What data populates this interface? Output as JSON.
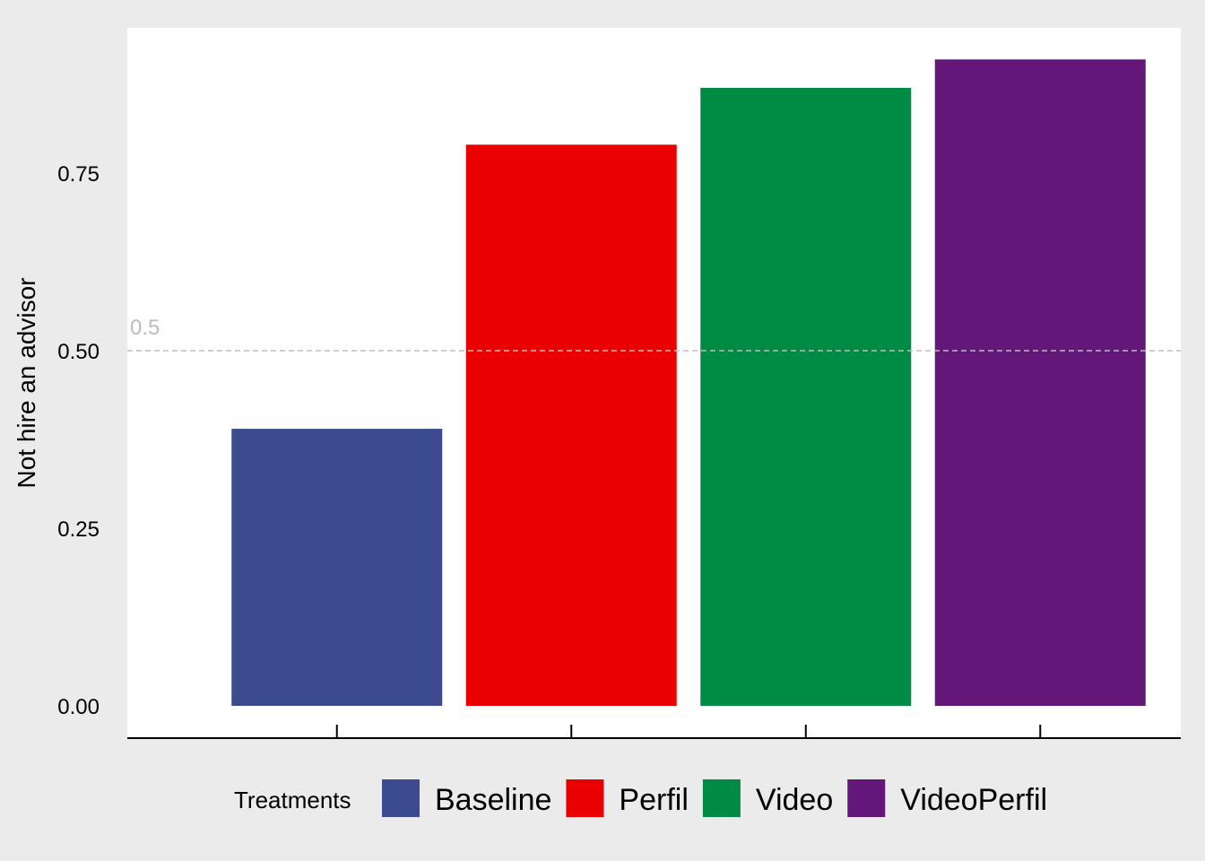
{
  "chart_data": {
    "type": "bar",
    "ylabel": "Not hire an advisor",
    "xlabel": "",
    "ylim": [
      0,
      0.955
    ],
    "yticks": [
      0.0,
      0.25,
      0.5,
      0.75
    ],
    "ytick_labels": [
      "0.00",
      "0.25",
      "0.50",
      "0.75"
    ],
    "categories": [
      "Baseline",
      "Perfil",
      "Video",
      "VideoPerfil"
    ],
    "values": [
      0.39,
      0.79,
      0.87,
      0.91
    ],
    "colors": [
      "#3C4B8F",
      "#EB0000",
      "#008B45",
      "#631879"
    ],
    "reference_line": {
      "value": 0.5,
      "label": "0.5",
      "style": "dashed",
      "color": "#BDBDBD"
    },
    "legend": {
      "title": "Treatments",
      "position": "bottom"
    },
    "grid": false,
    "background": {
      "panel": "#FFFFFF",
      "outer": "#EBEBEB"
    }
  }
}
